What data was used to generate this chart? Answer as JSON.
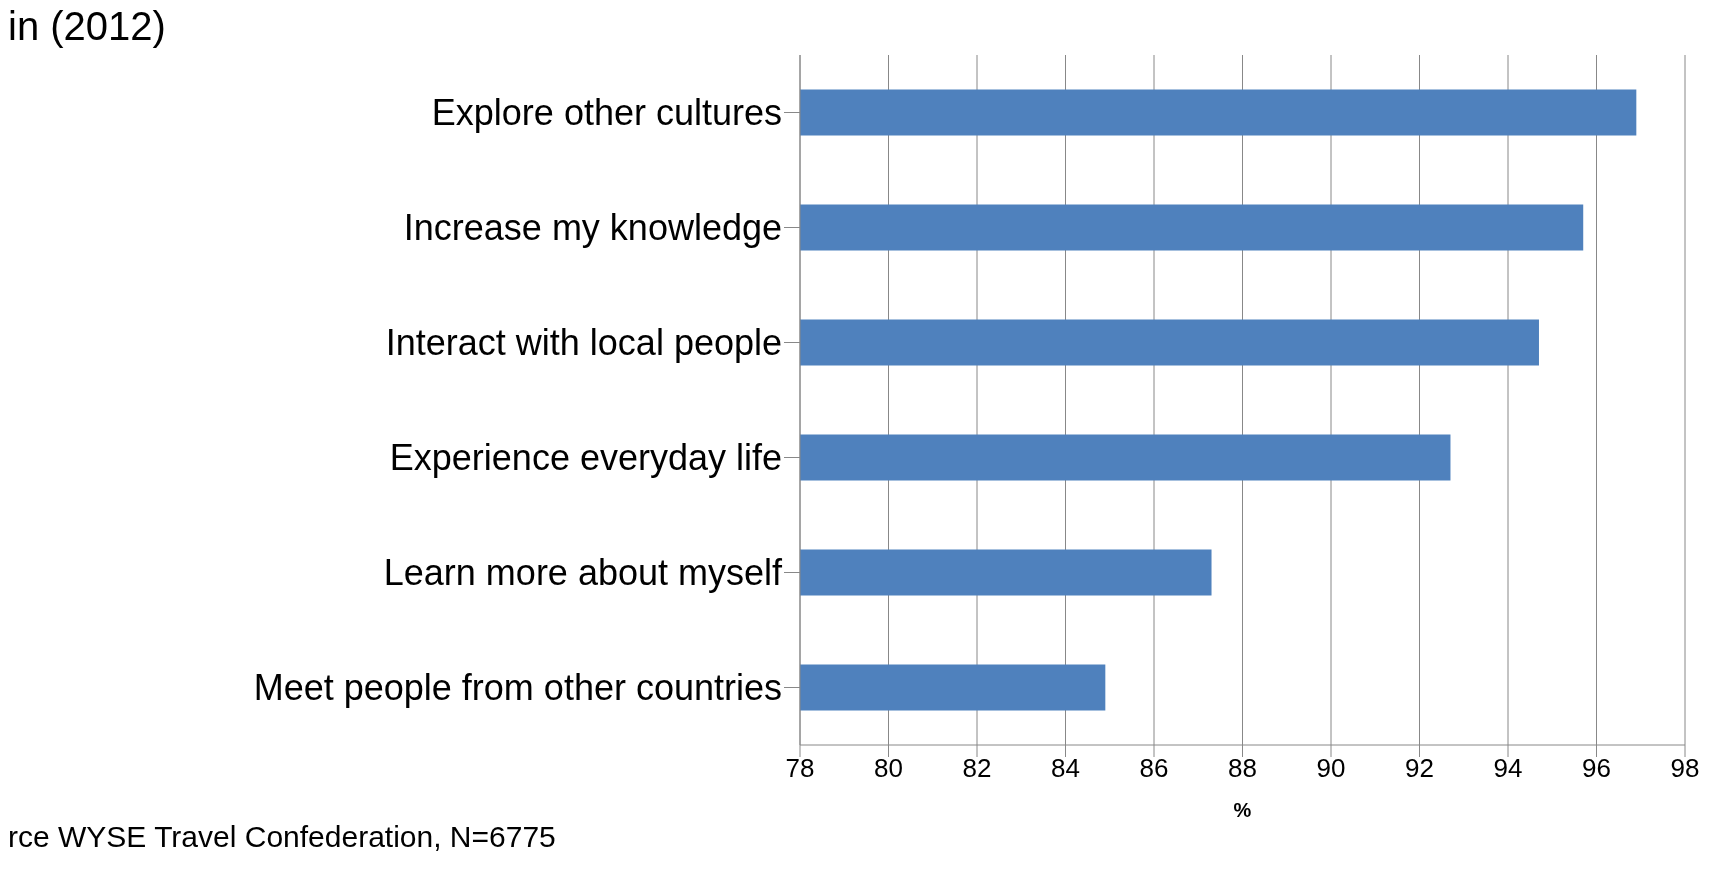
{
  "chart_data": {
    "type": "bar",
    "orientation": "horizontal",
    "title": "in (2012)",
    "xlabel": "%",
    "annotations": [
      "rce WYSE Travel Confederation, N=6775"
    ],
    "categories": [
      "Explore other cultures",
      "Increase my knowledge",
      "Interact with local people",
      "Experience everyday life ",
      "Learn more about myself",
      "Meet people from other countries"
    ],
    "values": [
      96.9,
      95.7,
      94.7,
      92.7,
      87.3,
      84.9
    ],
    "color": "#4f81bd",
    "xlim": [
      78,
      98
    ],
    "xticks": [
      78,
      80,
      82,
      84,
      86,
      88,
      90,
      92,
      94,
      96,
      98
    ],
    "grid": "x"
  }
}
